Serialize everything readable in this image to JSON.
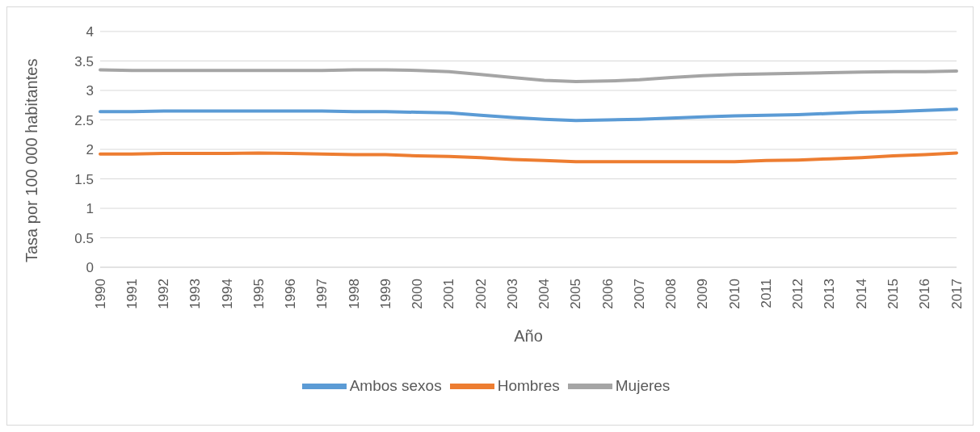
{
  "chart_data": {
    "type": "line",
    "xlabel": "Año",
    "ylabel": "Tasa por 100 000 habitantes",
    "categories": [
      "1990",
      "1991",
      "1992",
      "1993",
      "1994",
      "1995",
      "1996",
      "1997",
      "1998",
      "1999",
      "2000",
      "2001",
      "2002",
      "2003",
      "2004",
      "2005",
      "2006",
      "2007",
      "2008",
      "2009",
      "2010",
      "2011",
      "2012",
      "2013",
      "2014",
      "2015",
      "2016",
      "2017"
    ],
    "series": [
      {
        "name": "Ambos sexos",
        "color": "#5b9bd5",
        "values": [
          2.64,
          2.64,
          2.65,
          2.65,
          2.65,
          2.65,
          2.65,
          2.65,
          2.64,
          2.64,
          2.63,
          2.62,
          2.58,
          2.54,
          2.51,
          2.49,
          2.5,
          2.51,
          2.53,
          2.55,
          2.57,
          2.58,
          2.59,
          2.61,
          2.63,
          2.64,
          2.66,
          2.68
        ]
      },
      {
        "name": "Hombres",
        "color": "#ed7d31",
        "values": [
          1.92,
          1.92,
          1.93,
          1.93,
          1.93,
          1.94,
          1.93,
          1.92,
          1.91,
          1.91,
          1.89,
          1.88,
          1.86,
          1.83,
          1.81,
          1.79,
          1.79,
          1.79,
          1.79,
          1.79,
          1.79,
          1.81,
          1.82,
          1.84,
          1.86,
          1.89,
          1.91,
          1.94
        ]
      },
      {
        "name": "Mujeres",
        "color": "#a5a5a5",
        "values": [
          3.35,
          3.34,
          3.34,
          3.34,
          3.34,
          3.34,
          3.34,
          3.34,
          3.35,
          3.35,
          3.34,
          3.32,
          3.27,
          3.22,
          3.17,
          3.15,
          3.16,
          3.18,
          3.22,
          3.25,
          3.27,
          3.28,
          3.29,
          3.3,
          3.31,
          3.32,
          3.32,
          3.33
        ]
      }
    ],
    "ylim": [
      0,
      4
    ],
    "yticks": [
      0,
      0.5,
      1,
      1.5,
      2,
      2.5,
      3,
      3.5,
      4
    ],
    "grid": "y",
    "legend": "bottom",
    "marker": "none",
    "line_style": "solid"
  }
}
